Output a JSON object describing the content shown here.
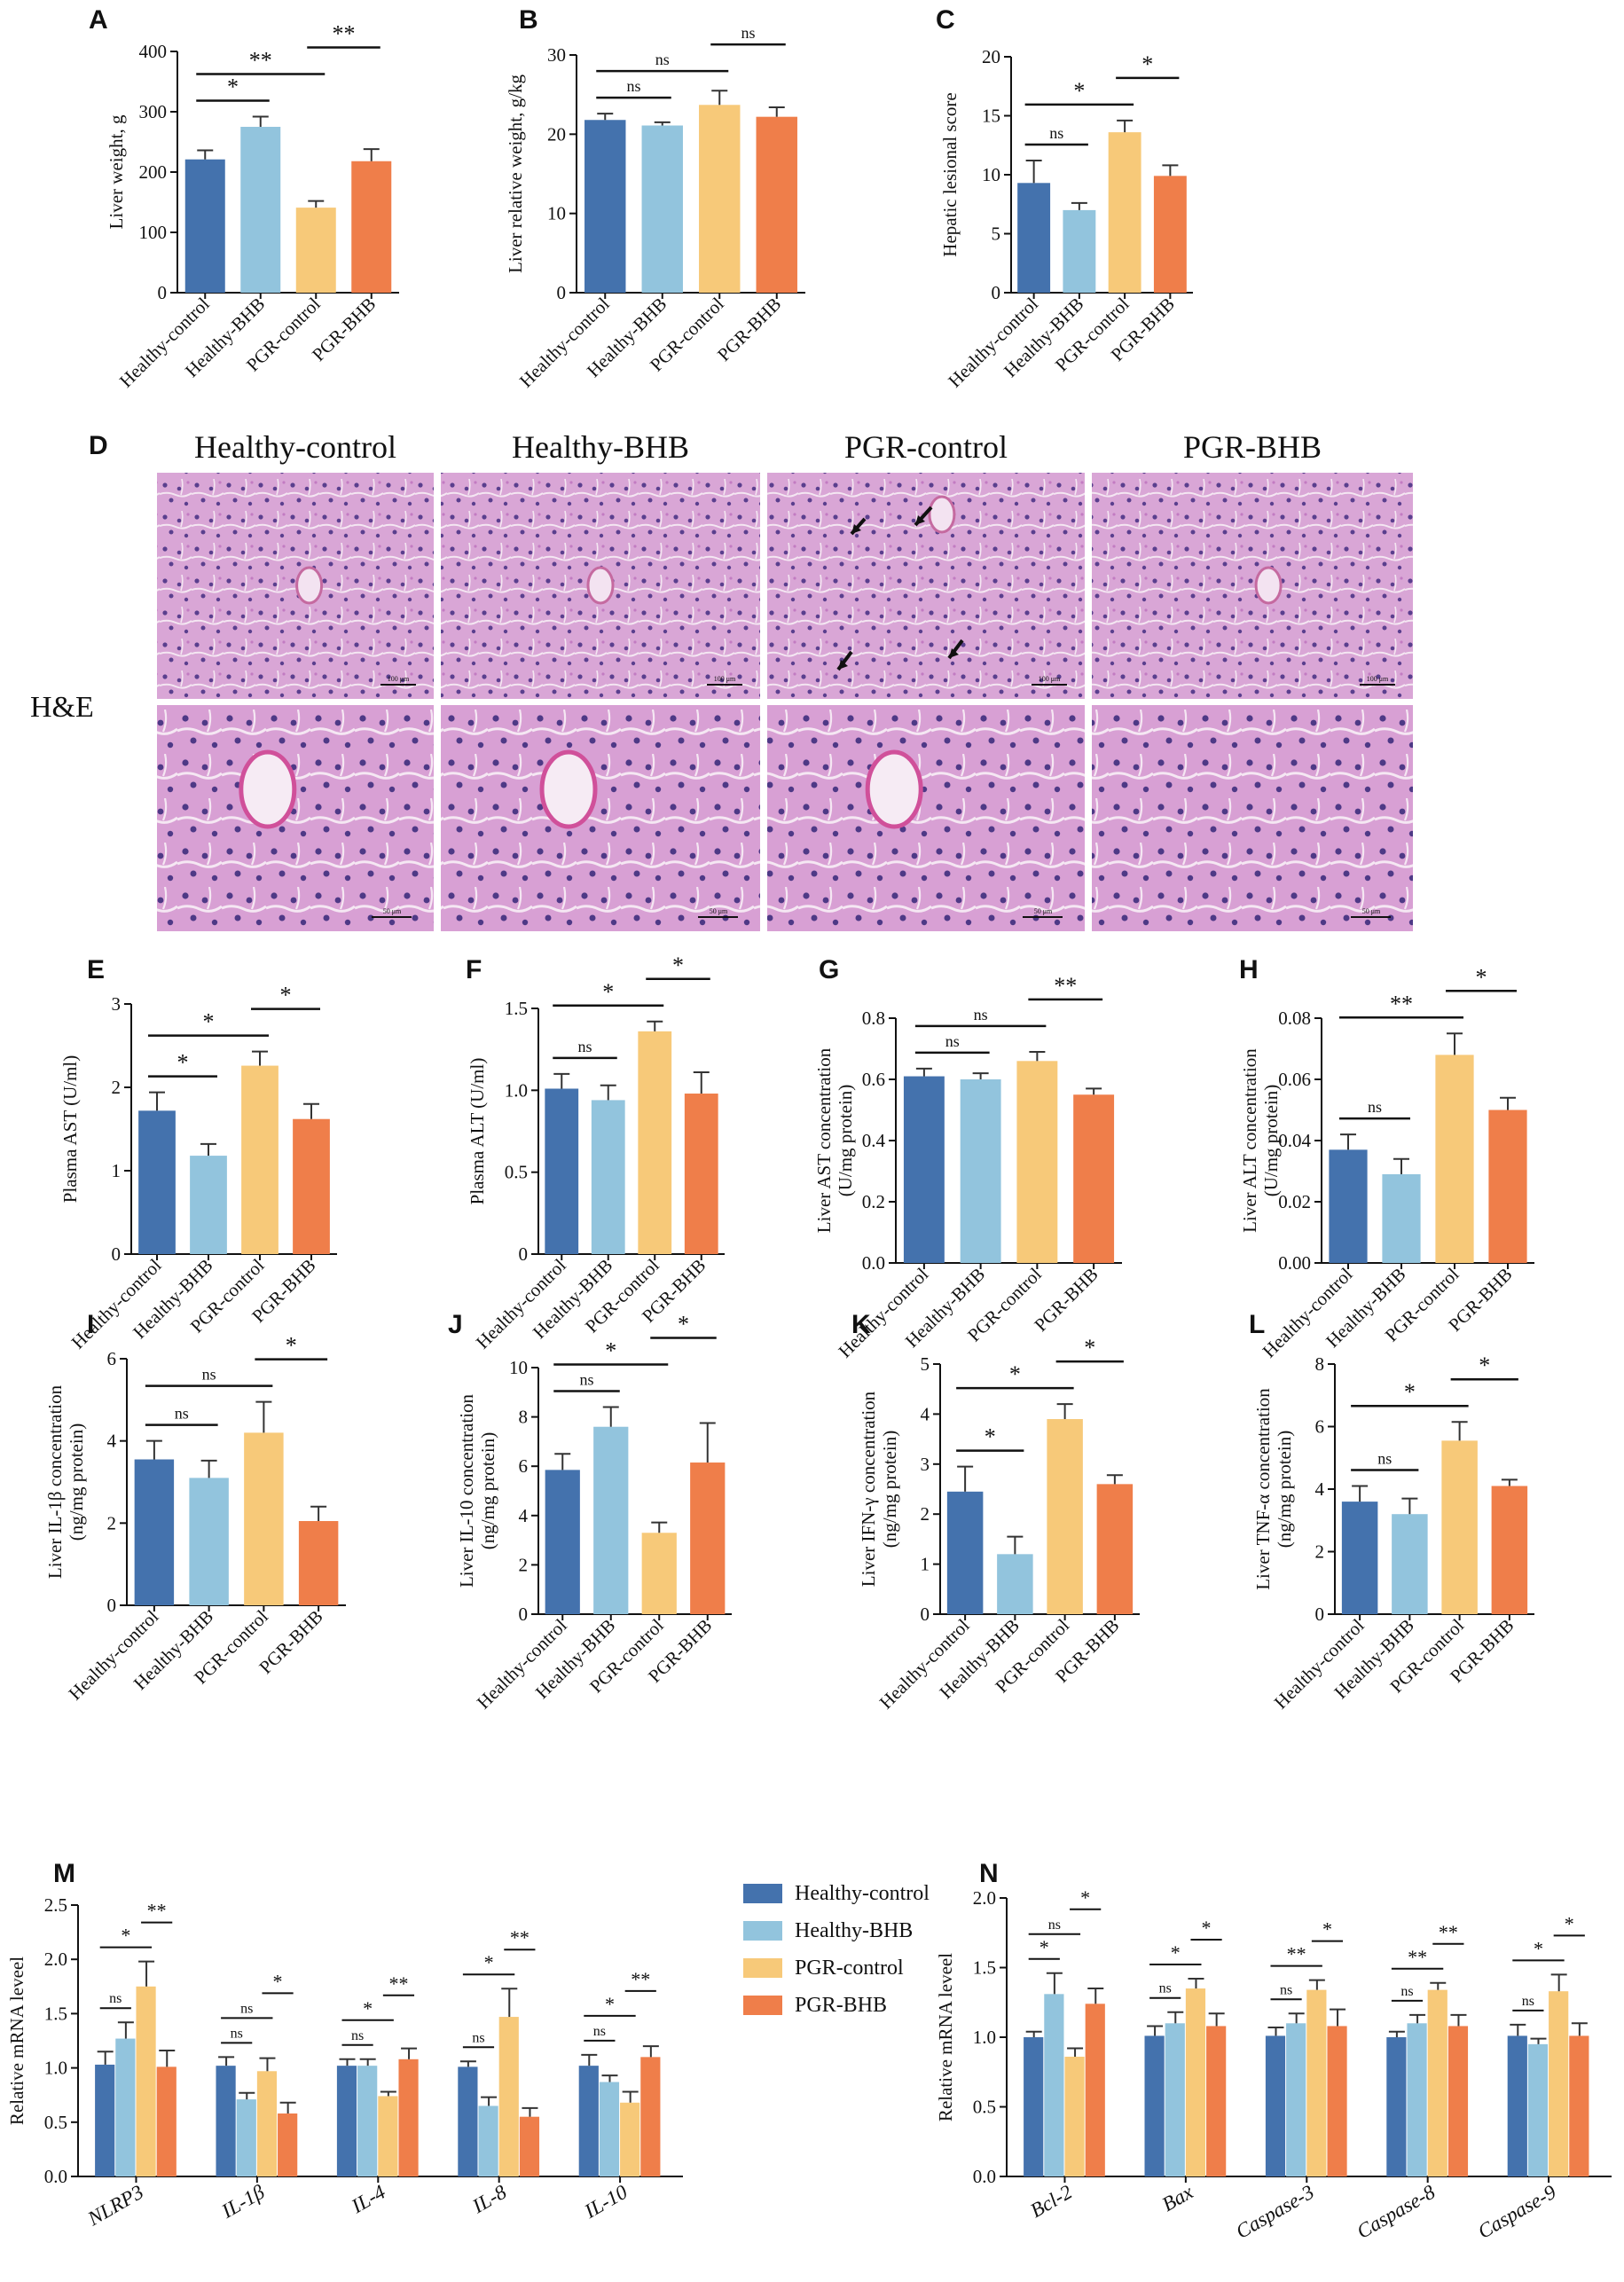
{
  "colors": {
    "healthy_control": "#4472ad",
    "healthy_bhb": "#92c4dd",
    "pgr_control": "#f7c979",
    "pgr_bhb": "#ef7e4a"
  },
  "group_labels": [
    "Healthy-control",
    "Healthy-BHB",
    "PGR-control",
    "PGR-BHB"
  ],
  "histology": {
    "letter": "D",
    "stain_label": "H&E",
    "column_titles": [
      "Healthy-control",
      "Healthy-BHB",
      "PGR-control",
      "PGR-BHB"
    ],
    "scale_bar_top": "100 μm",
    "scale_bar_bottom": "50 μm"
  },
  "chart_data": [
    {
      "id": "A",
      "type": "bar",
      "categories": [
        "Healthy-control",
        "Healthy-BHB",
        "PGR-control",
        "PGR-BHB"
      ],
      "values": [
        221,
        275,
        141,
        218
      ],
      "errors": [
        15,
        17,
        11,
        20
      ],
      "ylabel": "Liver weight, g",
      "ylim": [
        0,
        400
      ],
      "yticks": [
        "0",
        "100",
        "200",
        "300",
        "400"
      ],
      "significance": [
        {
          "from": 0,
          "to": 1,
          "label": "*"
        },
        {
          "from": 0,
          "to": 2,
          "label": "**"
        },
        {
          "from": 2,
          "to": 3,
          "label": "**"
        }
      ]
    },
    {
      "id": "B",
      "type": "bar",
      "categories": [
        "Healthy-control",
        "Healthy-BHB",
        "PGR-control",
        "PGR-BHB"
      ],
      "values": [
        21.8,
        21.1,
        23.7,
        22.2
      ],
      "errors": [
        0.8,
        0.4,
        1.8,
        1.2
      ],
      "ylabel": "Liver relative weight, g/kg",
      "ylim": [
        0,
        30
      ],
      "yticks": [
        "0",
        "10",
        "20",
        "30"
      ],
      "significance": [
        {
          "from": 0,
          "to": 1,
          "label": "ns"
        },
        {
          "from": 0,
          "to": 2,
          "label": "ns"
        },
        {
          "from": 2,
          "to": 3,
          "label": "ns"
        }
      ]
    },
    {
      "id": "C",
      "type": "bar",
      "categories": [
        "Healthy-control",
        "Healthy-BHB",
        "PGR-control",
        "PGR-BHB"
      ],
      "values": [
        9.3,
        7.0,
        13.6,
        9.9
      ],
      "errors": [
        1.9,
        0.6,
        1.0,
        0.9
      ],
      "ylabel": "Hepatic lesional score",
      "ylim": [
        0,
        20
      ],
      "yticks": [
        "0",
        "5",
        "10",
        "15",
        "20"
      ],
      "significance": [
        {
          "from": 0,
          "to": 1,
          "label": "ns"
        },
        {
          "from": 0,
          "to": 2,
          "label": "*"
        },
        {
          "from": 2,
          "to": 3,
          "label": "*"
        }
      ]
    },
    {
      "id": "E",
      "type": "bar",
      "categories": [
        "Healthy-control",
        "Healthy-BHB",
        "PGR-control",
        "PGR-BHB"
      ],
      "values": [
        1.72,
        1.18,
        2.26,
        1.62
      ],
      "errors": [
        0.22,
        0.14,
        0.17,
        0.18
      ],
      "ylabel": "Plasma AST  (U/ml)",
      "ylim": [
        0,
        3
      ],
      "yticks": [
        "0",
        "1",
        "2",
        "3"
      ],
      "significance": [
        {
          "from": 0,
          "to": 1,
          "label": "*"
        },
        {
          "from": 0,
          "to": 2,
          "label": "*"
        },
        {
          "from": 2,
          "to": 3,
          "label": "*"
        }
      ]
    },
    {
      "id": "F",
      "type": "bar",
      "categories": [
        "Healthy-control",
        "Healthy-BHB",
        "PGR-control",
        "PGR-BHB"
      ],
      "values": [
        1.01,
        0.94,
        1.36,
        0.98
      ],
      "errors": [
        0.09,
        0.09,
        0.06,
        0.13
      ],
      "ylabel": "Plasma ALT  (U/ml)",
      "ylim": [
        0,
        1.5
      ],
      "yticks": [
        "0",
        "0.5",
        "1.0",
        "1.5"
      ],
      "significance": [
        {
          "from": 0,
          "to": 1,
          "label": "ns"
        },
        {
          "from": 0,
          "to": 2,
          "label": "*"
        },
        {
          "from": 2,
          "to": 3,
          "label": "*"
        }
      ]
    },
    {
      "id": "G",
      "type": "bar",
      "categories": [
        "Healthy-control",
        "Healthy-BHB",
        "PGR-control",
        "PGR-BHB"
      ],
      "values": [
        0.61,
        0.6,
        0.66,
        0.55
      ],
      "errors": [
        0.025,
        0.02,
        0.03,
        0.02
      ],
      "ylabel": "Liver AST concentration\n(U/mg protein)",
      "ylim": [
        0,
        0.8
      ],
      "yticks": [
        "0.0",
        "0.2",
        "0.4",
        "0.6",
        "0.8"
      ],
      "significance": [
        {
          "from": 0,
          "to": 1,
          "label": "ns"
        },
        {
          "from": 0,
          "to": 2,
          "label": "ns"
        },
        {
          "from": 2,
          "to": 3,
          "label": "**"
        }
      ]
    },
    {
      "id": "H",
      "type": "bar",
      "categories": [
        "Healthy-control",
        "Healthy-BHB",
        "PGR-control",
        "PGR-BHB"
      ],
      "values": [
        0.037,
        0.029,
        0.068,
        0.05
      ],
      "errors": [
        0.005,
        0.005,
        0.007,
        0.004
      ],
      "ylabel": "Liver ALT concentration\n(U/mg protein)",
      "ylim": [
        0,
        0.08
      ],
      "yticks": [
        "0.00",
        "0.02",
        "0.04",
        "0.06",
        "0.08"
      ],
      "significance": [
        {
          "from": 0,
          "to": 1,
          "label": "ns"
        },
        {
          "from": 0,
          "to": 2,
          "label": "**"
        },
        {
          "from": 2,
          "to": 3,
          "label": "*"
        }
      ]
    },
    {
      "id": "I",
      "type": "bar",
      "categories": [
        "Healthy-control",
        "Healthy-BHB",
        "PGR-control",
        "PGR-BHB"
      ],
      "values": [
        3.55,
        3.1,
        4.2,
        2.05
      ],
      "errors": [
        0.45,
        0.42,
        0.75,
        0.35
      ],
      "ylabel": "Liver IL-1β concentration\n(ng/mg protein)",
      "ylim": [
        0,
        6
      ],
      "yticks": [
        "0",
        "2",
        "4",
        "6"
      ],
      "significance": [
        {
          "from": 0,
          "to": 1,
          "label": "ns"
        },
        {
          "from": 0,
          "to": 2,
          "label": "ns"
        },
        {
          "from": 2,
          "to": 3,
          "label": "*"
        }
      ]
    },
    {
      "id": "J",
      "type": "bar",
      "categories": [
        "Healthy-control",
        "Healthy-BHB",
        "PGR-control",
        "PGR-BHB"
      ],
      "values": [
        5.85,
        7.6,
        3.3,
        6.15
      ],
      "errors": [
        0.65,
        0.8,
        0.42,
        1.6
      ],
      "ylabel": "Liver IL-10 concentration\n(ng/mg protein)",
      "ylim": [
        0,
        10
      ],
      "yticks": [
        "0",
        "2",
        "4",
        "6",
        "8",
        "10"
      ],
      "significance": [
        {
          "from": 0,
          "to": 1,
          "label": "ns"
        },
        {
          "from": 0,
          "to": 2,
          "label": "*"
        },
        {
          "from": 2,
          "to": 3,
          "label": "*"
        }
      ]
    },
    {
      "id": "K",
      "type": "bar",
      "categories": [
        "Healthy-control",
        "Healthy-BHB",
        "PGR-control",
        "PGR-BHB"
      ],
      "values": [
        2.45,
        1.2,
        3.9,
        2.6
      ],
      "errors": [
        0.5,
        0.35,
        0.3,
        0.18
      ],
      "ylabel": "Liver IFN-γ concentration\n(ng/mg protein)",
      "ylim": [
        0,
        5
      ],
      "yticks": [
        "0",
        "1",
        "2",
        "3",
        "4",
        "5"
      ],
      "significance": [
        {
          "from": 0,
          "to": 1,
          "label": "*"
        },
        {
          "from": 0,
          "to": 2,
          "label": "*"
        },
        {
          "from": 2,
          "to": 3,
          "label": "*"
        }
      ]
    },
    {
      "id": "L",
      "type": "bar",
      "categories": [
        "Healthy-control",
        "Healthy-BHB",
        "PGR-control",
        "PGR-BHB"
      ],
      "values": [
        3.6,
        3.2,
        5.55,
        4.1
      ],
      "errors": [
        0.5,
        0.5,
        0.6,
        0.2
      ],
      "ylabel": "Liver TNF-α concentration\n(ng/mg protein)",
      "ylim": [
        0,
        8
      ],
      "yticks": [
        "0",
        "2",
        "4",
        "6",
        "8"
      ],
      "significance": [
        {
          "from": 0,
          "to": 1,
          "label": "ns"
        },
        {
          "from": 0,
          "to": 2,
          "label": "*"
        },
        {
          "from": 2,
          "to": 3,
          "label": "*"
        }
      ]
    },
    {
      "id": "M",
      "type": "bar",
      "categories": [
        "NLRP3",
        "IL-1β",
        "IL-4",
        "IL-8",
        "IL-10"
      ],
      "ylabel": "Relative mRNA leveel",
      "ylim": [
        0,
        2.5
      ],
      "yticks": [
        "0.0",
        "0.5",
        "1.0",
        "1.5",
        "2.0",
        "2.5"
      ],
      "series": [
        {
          "name": "Healthy-control",
          "values": [
            1.03,
            1.02,
            1.02,
            1.01,
            1.02
          ],
          "errors": [
            0.12,
            0.08,
            0.06,
            0.05,
            0.1
          ]
        },
        {
          "name": "Healthy-BHB",
          "values": [
            1.27,
            0.71,
            1.02,
            0.65,
            0.87
          ],
          "errors": [
            0.15,
            0.06,
            0.06,
            0.08,
            0.06
          ]
        },
        {
          "name": "PGR-control",
          "values": [
            1.75,
            0.97,
            0.74,
            1.47,
            0.68
          ],
          "errors": [
            0.23,
            0.12,
            0.04,
            0.26,
            0.1
          ]
        },
        {
          "name": "PGR-BHB",
          "values": [
            1.01,
            0.58,
            1.08,
            0.55,
            1.1
          ],
          "errors": [
            0.15,
            0.1,
            0.1,
            0.08,
            0.1
          ]
        }
      ],
      "significance": [
        {
          "group": 0,
          "from": 0,
          "to": 1,
          "label": "ns"
        },
        {
          "group": 0,
          "from": 0,
          "to": 2,
          "label": "*"
        },
        {
          "group": 0,
          "from": 2,
          "to": 3,
          "label": "**"
        },
        {
          "group": 1,
          "from": 0,
          "to": 1,
          "label": "ns"
        },
        {
          "group": 1,
          "from": 0,
          "to": 2,
          "label": "ns"
        },
        {
          "group": 1,
          "from": 2,
          "to": 3,
          "label": "*"
        },
        {
          "group": 2,
          "from": 0,
          "to": 1,
          "label": "ns"
        },
        {
          "group": 2,
          "from": 0,
          "to": 2,
          "label": "*"
        },
        {
          "group": 2,
          "from": 2,
          "to": 3,
          "label": "**"
        },
        {
          "group": 3,
          "from": 0,
          "to": 1,
          "label": "ns"
        },
        {
          "group": 3,
          "from": 0,
          "to": 2,
          "label": "*"
        },
        {
          "group": 3,
          "from": 2,
          "to": 3,
          "label": "**"
        },
        {
          "group": 4,
          "from": 0,
          "to": 1,
          "label": "ns"
        },
        {
          "group": 4,
          "from": 0,
          "to": 2,
          "label": "*"
        },
        {
          "group": 4,
          "from": 2,
          "to": 3,
          "label": "**"
        }
      ]
    },
    {
      "id": "N",
      "type": "bar",
      "categories": [
        "Bcl-2",
        "Bax",
        "Caspase-3",
        "Caspase-8",
        "Caspase-9"
      ],
      "ylabel": "Relative mRNA leveel",
      "ylim": [
        0,
        2.0
      ],
      "yticks": [
        "0.0",
        "0.5",
        "1.0",
        "1.5",
        "2.0"
      ],
      "series": [
        {
          "name": "Healthy-control",
          "values": [
            1.0,
            1.01,
            1.01,
            1.0,
            1.01
          ],
          "errors": [
            0.04,
            0.07,
            0.06,
            0.04,
            0.08
          ]
        },
        {
          "name": "Healthy-BHB",
          "values": [
            1.31,
            1.1,
            1.1,
            1.1,
            0.95
          ],
          "errors": [
            0.15,
            0.08,
            0.07,
            0.06,
            0.04
          ]
        },
        {
          "name": "PGR-control",
          "values": [
            0.86,
            1.35,
            1.34,
            1.34,
            1.33
          ],
          "errors": [
            0.06,
            0.07,
            0.07,
            0.05,
            0.12
          ]
        },
        {
          "name": "PGR-BHB",
          "values": [
            1.24,
            1.08,
            1.08,
            1.08,
            1.01
          ],
          "errors": [
            0.11,
            0.09,
            0.12,
            0.08,
            0.09
          ]
        }
      ],
      "significance": [
        {
          "group": 0,
          "from": 0,
          "to": 1,
          "label": "*"
        },
        {
          "group": 0,
          "from": 0,
          "to": 2,
          "label": "ns"
        },
        {
          "group": 0,
          "from": 2,
          "to": 3,
          "label": "*"
        },
        {
          "group": 1,
          "from": 0,
          "to": 1,
          "label": "ns"
        },
        {
          "group": 1,
          "from": 0,
          "to": 2,
          "label": "*"
        },
        {
          "group": 1,
          "from": 2,
          "to": 3,
          "label": "*"
        },
        {
          "group": 2,
          "from": 0,
          "to": 1,
          "label": "ns"
        },
        {
          "group": 2,
          "from": 0,
          "to": 2,
          "label": "**"
        },
        {
          "group": 2,
          "from": 2,
          "to": 3,
          "label": "*"
        },
        {
          "group": 3,
          "from": 0,
          "to": 1,
          "label": "ns"
        },
        {
          "group": 3,
          "from": 0,
          "to": 2,
          "label": "**"
        },
        {
          "group": 3,
          "from": 2,
          "to": 3,
          "label": "**"
        },
        {
          "group": 4,
          "from": 0,
          "to": 1,
          "label": "ns"
        },
        {
          "group": 4,
          "from": 0,
          "to": 2,
          "label": "*"
        },
        {
          "group": 4,
          "from": 2,
          "to": 3,
          "label": "*"
        }
      ]
    }
  ],
  "legend": {
    "items": [
      "Healthy-control",
      "Healthy-BHB",
      "PGR-control",
      "PGR-BHB"
    ]
  }
}
